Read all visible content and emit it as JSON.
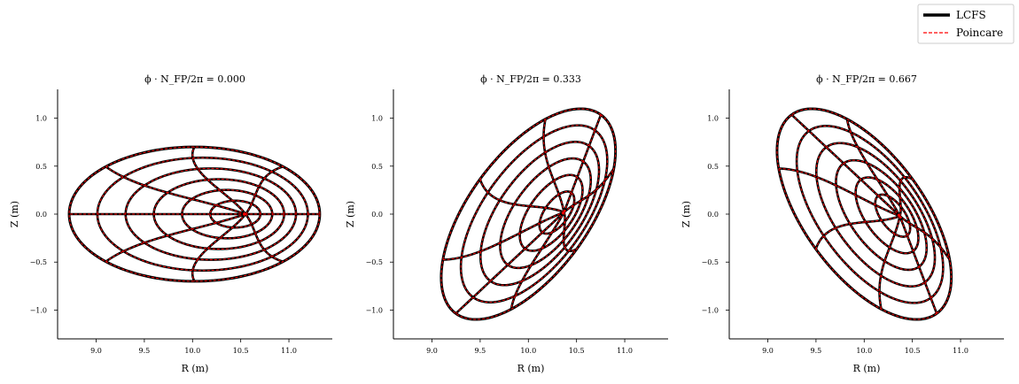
{
  "legend": {
    "entries": [
      {
        "label": "LCFS",
        "color": "#000000",
        "style": "solid"
      },
      {
        "label": "Poincare",
        "color": "#ff0000",
        "style": "dashed"
      }
    ],
    "placement": "top-right"
  },
  "chart_data": [
    {
      "type": "line",
      "title": "ϕ · N_FP/2π = 0.000",
      "xlabel": "R (m)",
      "ylabel": "Z (m)",
      "xlim": [
        8.6,
        11.45
      ],
      "ylim": [
        -1.3,
        1.3
      ],
      "xticks": [
        "9.0",
        "9.5",
        "10.0",
        "10.5",
        "11.0"
      ],
      "yticks": [
        "−1.0",
        "−0.5",
        "0.0",
        "0.5",
        "1.0"
      ],
      "surfaces": {
        "axis_R": 10.55,
        "axis_Z": 0.0,
        "lcfs_R0": 10.02,
        "a": 1.3,
        "b": 0.7,
        "tilt_deg": 0,
        "flux_levels": [
          0.2,
          0.36,
          0.52,
          0.68,
          0.84,
          1.0
        ]
      },
      "series": [
        {
          "name": "LCFS",
          "color": "#000000"
        },
        {
          "name": "Poincare",
          "color": "#ff0000"
        }
      ]
    },
    {
      "type": "line",
      "title": "ϕ · N_FP/2π = 0.333",
      "xlabel": "R (m)",
      "ylabel": "Z (m)",
      "xlim": [
        8.6,
        11.45
      ],
      "ylim": [
        -1.3,
        1.3
      ],
      "xticks": [
        "9.0",
        "9.5",
        "10.0",
        "10.5",
        "11.0"
      ],
      "yticks": [
        "−1.0",
        "−0.5",
        "0.0",
        "0.5",
        "1.0"
      ],
      "surfaces": {
        "axis_R": 10.37,
        "axis_Z": 0.02,
        "lcfs_R0": 10.0,
        "a": 1.28,
        "b": 0.62,
        "tilt_deg": 54,
        "flux_levels": [
          0.2,
          0.36,
          0.52,
          0.68,
          0.84,
          1.0
        ]
      },
      "series": [
        {
          "name": "LCFS",
          "color": "#000000"
        },
        {
          "name": "Poincare",
          "color": "#ff0000"
        }
      ]
    },
    {
      "type": "line",
      "title": "ϕ · N_FP/2π = 0.667",
      "xlabel": "R (m)",
      "ylabel": "Z (m)",
      "xlim": [
        8.6,
        11.45
      ],
      "ylim": [
        -1.3,
        1.3
      ],
      "xticks": [
        "9.0",
        "9.5",
        "10.0",
        "10.5",
        "11.0"
      ],
      "yticks": [
        "−1.0",
        "−0.5",
        "0.0",
        "0.5",
        "1.0"
      ],
      "surfaces": {
        "axis_R": 10.37,
        "axis_Z": -0.02,
        "lcfs_R0": 10.0,
        "a": 1.28,
        "b": 0.62,
        "tilt_deg": -54,
        "flux_levels": [
          0.2,
          0.36,
          0.52,
          0.68,
          0.84,
          1.0
        ]
      },
      "series": [
        {
          "name": "LCFS",
          "color": "#000000"
        },
        {
          "name": "Poincare",
          "color": "#ff0000"
        }
      ]
    }
  ]
}
